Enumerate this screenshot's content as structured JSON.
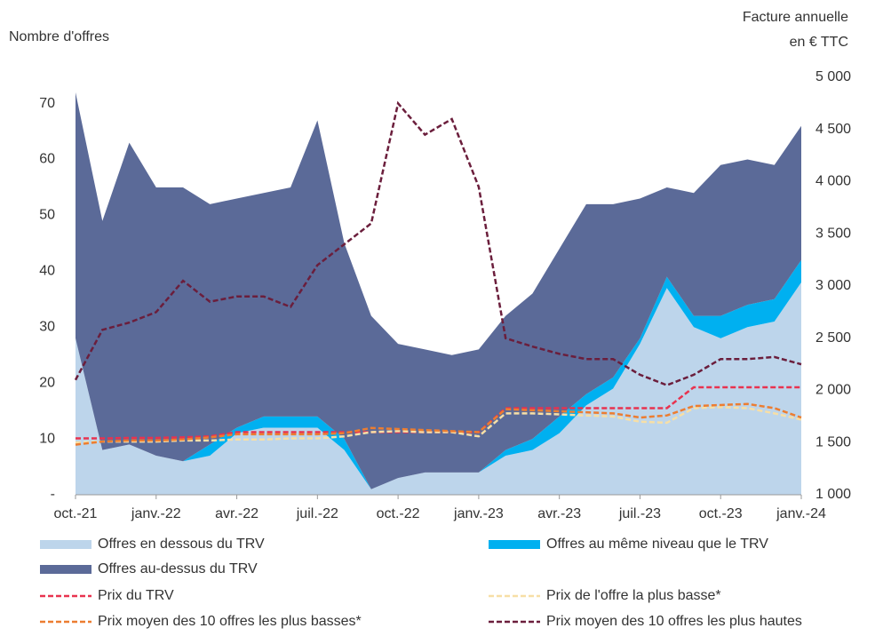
{
  "chart_data": {
    "type": "area+line",
    "y_label": "Nombre d'offres",
    "y2_label": [
      "Facture annuelle",
      "en € TTC"
    ],
    "categories": [
      "oct.-21",
      null,
      null,
      "janv.-22",
      null,
      null,
      "avr.-22",
      null,
      null,
      "juil.-22",
      null,
      null,
      "oct.-22",
      null,
      null,
      "janv.-23",
      null,
      null,
      "avr.-23",
      null,
      null,
      "juil.-23",
      null,
      null,
      "oct.-23",
      null,
      null,
      "janv.-24"
    ],
    "series": [
      {
        "name": "Offres en dessous du TRV",
        "color": "#bdd5eb",
        "kind": "area",
        "values": [
          28,
          8,
          9,
          7,
          6,
          7,
          11,
          12,
          12,
          12,
          8,
          1,
          3,
          4,
          4,
          4,
          7,
          8,
          11,
          16,
          19,
          27,
          37,
          30,
          28,
          30,
          31,
          38
        ]
      },
      {
        "name": "Offres au même niveau que le TRV",
        "color": "#00b0f0",
        "kind": "area",
        "values": [
          0,
          0,
          0,
          0,
          0,
          2,
          1,
          2,
          2,
          2,
          2,
          0,
          0,
          0,
          0,
          0,
          1,
          2,
          3,
          2,
          2,
          1,
          2,
          2,
          4,
          4,
          4,
          4
        ]
      },
      {
        "name": "Offres au-dessus du TRV",
        "color": "#5b6a98",
        "kind": "area",
        "values": [
          44,
          41,
          54,
          48,
          49,
          43,
          41,
          40,
          41,
          53,
          35,
          31,
          24,
          22,
          21,
          22,
          24,
          26,
          30,
          34,
          31,
          25,
          16,
          22,
          27,
          26,
          24,
          24
        ]
      },
      {
        "name": "Prix du TRV",
        "color": "#e8334f",
        "kind": "line",
        "axis": "y2",
        "values": [
          1540,
          1540,
          1545,
          1545,
          1550,
          1560,
          1600,
          1600,
          1600,
          1600,
          1600,
          1600,
          1600,
          1600,
          1600,
          1600,
          1830,
          1830,
          1830,
          1830,
          1830,
          1830,
          1830,
          2030,
          2030,
          2030,
          2030,
          2030
        ]
      },
      {
        "name": "Prix de l'offre la plus basse*",
        "color": "#f7dfa6",
        "kind": "line",
        "axis": "y2",
        "values": [
          1500,
          1510,
          1510,
          1510,
          1520,
          1520,
          1530,
          1530,
          1540,
          1540,
          1560,
          1600,
          1610,
          1600,
          1600,
          1560,
          1780,
          1780,
          1770,
          1760,
          1750,
          1700,
          1690,
          1830,
          1840,
          1830,
          1780,
          1720
        ]
      },
      {
        "name": "Prix moyen des 10 offres les plus basses*",
        "color": "#ec7d31",
        "kind": "line",
        "axis": "y2",
        "values": [
          1480,
          1510,
          1520,
          1520,
          1530,
          1550,
          1580,
          1580,
          1580,
          1580,
          1590,
          1640,
          1630,
          1620,
          1610,
          1600,
          1820,
          1810,
          1800,
          1790,
          1780,
          1740,
          1760,
          1850,
          1860,
          1870,
          1830,
          1740
        ]
      },
      {
        "name": "Prix moyen des 10 offres les plus hautes",
        "color": "#6b1e3c",
        "kind": "line",
        "axis": "y2",
        "values": [
          2100,
          2580,
          2650,
          2750,
          3050,
          2850,
          2900,
          2900,
          2800,
          3200,
          3400,
          3600,
          4750,
          4450,
          4600,
          3950,
          2500,
          2420,
          2350,
          2300,
          2300,
          2150,
          2050,
          2150,
          2300,
          2300,
          2320,
          2250
        ]
      }
    ],
    "ylim": [
      0,
      74.7
    ],
    "yticks": [
      {
        "value": 0,
        "label": "-"
      },
      10,
      20,
      30,
      40,
      50,
      60,
      70
    ],
    "y2lim": [
      1000,
      5000
    ],
    "y2ticks": [
      {
        "value": 1000,
        "label": "1 000"
      },
      {
        "value": 1500,
        "label": "1 500"
      },
      {
        "value": 2000,
        "label": "2 000"
      },
      {
        "value": 2500,
        "label": "2 500"
      },
      {
        "value": 3000,
        "label": "3 000"
      },
      {
        "value": 3500,
        "label": "3 500"
      },
      {
        "value": 4000,
        "label": "4 000"
      },
      {
        "value": 4500,
        "label": "4 500"
      },
      {
        "value": 5000,
        "label": "5 000"
      }
    ],
    "grid": false,
    "legend": "bottom"
  }
}
